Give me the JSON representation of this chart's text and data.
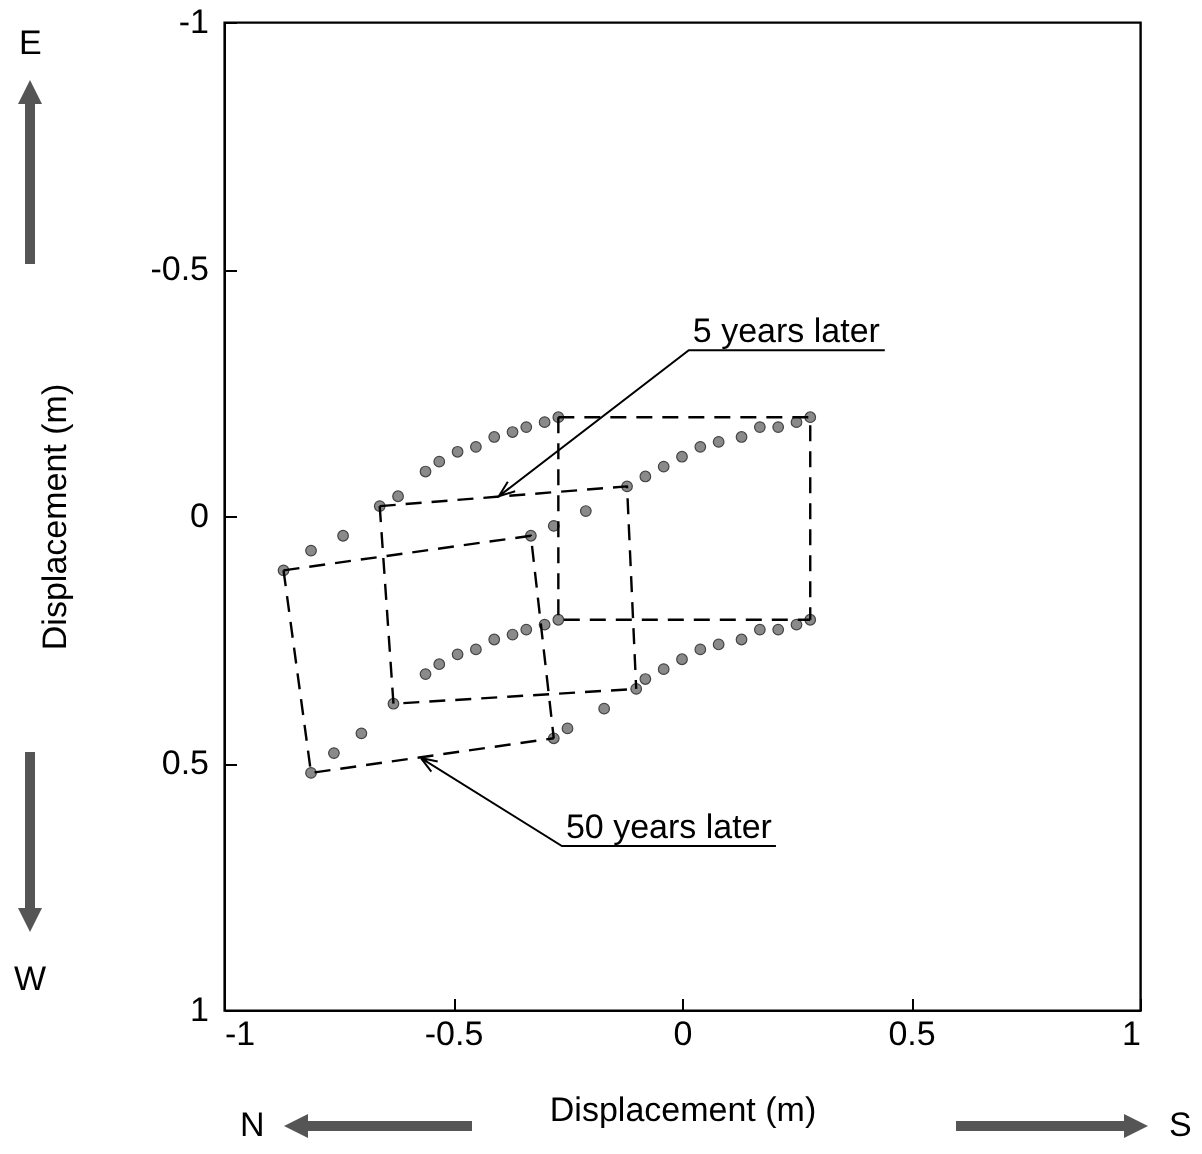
{
  "chart_data": {
    "type": "scatter",
    "xlabel": "Displacement (m)",
    "ylabel": "Displacement (m)",
    "xlim": [
      -1,
      1
    ],
    "xticks": [
      -1,
      -0.5,
      0,
      0.5,
      1
    ],
    "ylim": [
      1,
      -1
    ],
    "yticks": [
      -1,
      -0.5,
      0,
      0.5,
      1
    ],
    "grid": false,
    "marker": "circle",
    "series": [
      {
        "color": "#8a8a8a",
        "x": [
          -0.27,
          -0.3,
          -0.34,
          -0.37,
          -0.41,
          -0.45,
          -0.49,
          -0.53,
          -0.56,
          -0.62,
          -0.66,
          -0.74,
          -0.81,
          -0.87
        ],
        "values": [
          -0.2,
          -0.19,
          -0.18,
          -0.17,
          -0.16,
          -0.14,
          -0.13,
          -0.11,
          -0.09,
          -0.04,
          -0.02,
          0.04,
          0.07,
          0.11
        ]
      },
      {
        "color": "#8a8a8a",
        "x": [
          0.28,
          0.25,
          0.21,
          0.17,
          0.13,
          0.08,
          0.04,
          0.0,
          -0.04,
          -0.08,
          -0.12,
          -0.21,
          -0.28,
          -0.33
        ],
        "values": [
          -0.2,
          -0.19,
          -0.18,
          -0.18,
          -0.16,
          -0.15,
          -0.14,
          -0.12,
          -0.1,
          -0.08,
          -0.06,
          -0.01,
          0.02,
          0.04
        ]
      },
      {
        "color": "#8a8a8a",
        "x": [
          -0.27,
          -0.3,
          -0.34,
          -0.37,
          -0.41,
          -0.45,
          -0.49,
          -0.53,
          -0.56,
          -0.63,
          -0.7,
          -0.76,
          -0.81
        ],
        "values": [
          0.21,
          0.22,
          0.23,
          0.24,
          0.25,
          0.27,
          0.28,
          0.3,
          0.32,
          0.38,
          0.44,
          0.48,
          0.52
        ]
      },
      {
        "color": "#8a8a8a",
        "x": [
          0.28,
          0.25,
          0.21,
          0.17,
          0.13,
          0.08,
          0.04,
          0.0,
          -0.04,
          -0.08,
          -0.1,
          -0.17,
          -0.25,
          -0.28
        ],
        "values": [
          0.21,
          0.22,
          0.23,
          0.23,
          0.25,
          0.26,
          0.27,
          0.29,
          0.31,
          0.33,
          0.35,
          0.39,
          0.43,
          0.45
        ]
      },
      {
        "type": "line",
        "line_style": "dashed",
        "marker": "none",
        "color": "#000000",
        "x": [
          -0.27,
          0.28,
          0.28
        ],
        "values": [
          -0.2,
          -0.2,
          0.21
        ]
      },
      {
        "type": "line",
        "line_style": "dashed",
        "marker": "none",
        "color": "#000000",
        "x": [
          -0.27,
          -0.27,
          0.28
        ],
        "values": [
          -0.2,
          0.21,
          0.21
        ]
      },
      {
        "type": "line",
        "line_style": "dashed",
        "marker": "none",
        "color": "#000000",
        "x": [
          -0.66,
          -0.12,
          -0.1
        ],
        "values": [
          -0.02,
          -0.06,
          0.35
        ]
      },
      {
        "type": "line",
        "line_style": "dashed",
        "marker": "none",
        "color": "#000000",
        "x": [
          -0.66,
          -0.63,
          -0.1
        ],
        "values": [
          -0.02,
          0.38,
          0.35
        ]
      },
      {
        "type": "line",
        "line_style": "dashed",
        "marker": "none",
        "color": "#000000",
        "x": [
          -0.87,
          -0.33,
          -0.28
        ],
        "values": [
          0.11,
          0.04,
          0.45
        ]
      },
      {
        "type": "line",
        "line_style": "dashed",
        "marker": "none",
        "color": "#000000",
        "x": [
          -0.87,
          -0.81,
          -0.28
        ],
        "values": [
          0.11,
          0.52,
          0.45
        ]
      }
    ],
    "annotations": [
      {
        "text": "5 years later",
        "x": -0.4,
        "y": -0.04
      },
      {
        "text": "50 years later",
        "x": -0.57,
        "y": 0.49
      },
      "E",
      "W",
      "N",
      "S"
    ]
  }
}
